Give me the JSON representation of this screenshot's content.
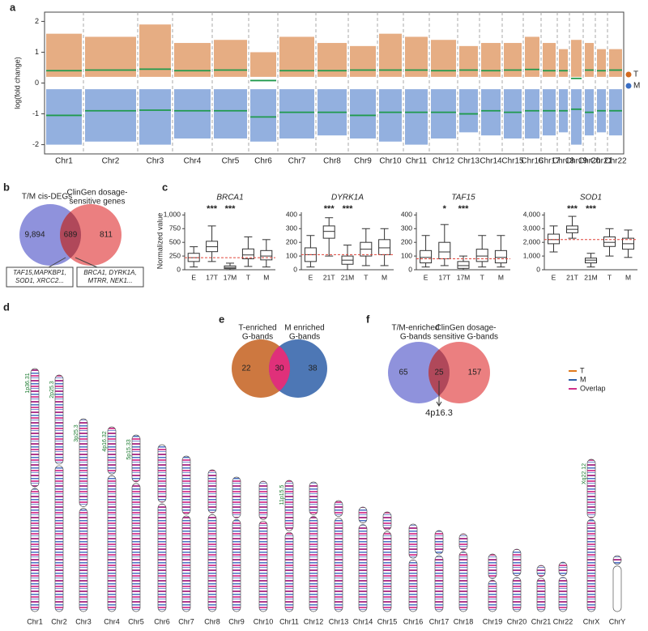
{
  "panel_labels": [
    "a",
    "b",
    "c",
    "d",
    "e",
    "f"
  ],
  "chart_data": [
    {
      "type": "strip",
      "ylabel": "log(fold change)",
      "categories": [
        "Chr1",
        "Chr2",
        "Chr3",
        "Chr4",
        "Chr5",
        "Chr6",
        "Chr7",
        "Chr8",
        "Chr9",
        "Chr10",
        "Chr11",
        "Chr12",
        "Chr13",
        "Chr14",
        "Chr15",
        "Chr16",
        "Chr17",
        "Chr18",
        "Chr19",
        "Chr20",
        "Chr21",
        "Chr22"
      ],
      "ylim": [
        -2.3,
        2.3
      ],
      "yticks": [
        -2,
        -1,
        0,
        1,
        2
      ],
      "legend": "right",
      "median_color": "#1f9a4c",
      "series": [
        {
          "name": "T",
          "color": "#d2691e",
          "values": [
            0.4,
            0.42,
            0.45,
            0.4,
            0.42,
            0.08,
            0.4,
            0.4,
            0.42,
            0.42,
            0.42,
            0.4,
            0.42,
            0.4,
            0.42,
            0.44,
            0.4,
            0.4,
            0.15,
            0.42,
            0.4,
            0.42
          ],
          "ranges": [
            [
              0.2,
              1.6
            ],
            [
              0.2,
              1.5
            ],
            [
              0.2,
              1.9
            ],
            [
              0.2,
              1.3
            ],
            [
              0.2,
              1.4
            ],
            [
              0.2,
              1.0
            ],
            [
              0.2,
              1.5
            ],
            [
              0.2,
              1.3
            ],
            [
              0.2,
              1.2
            ],
            [
              0.2,
              1.6
            ],
            [
              0.2,
              1.5
            ],
            [
              0.2,
              1.4
            ],
            [
              0.2,
              1.2
            ],
            [
              0.2,
              1.3
            ],
            [
              0.2,
              1.3
            ],
            [
              0.2,
              1.5
            ],
            [
              0.2,
              1.3
            ],
            [
              0.2,
              1.1
            ],
            [
              0.2,
              1.4
            ],
            [
              0.2,
              1.3
            ],
            [
              0.2,
              1.1
            ],
            [
              0.2,
              1.1
            ]
          ]
        },
        {
          "name": "M",
          "color": "#3a6fc4",
          "values": [
            -1.05,
            -0.9,
            -0.88,
            -0.9,
            -0.9,
            -1.1,
            -0.95,
            -0.95,
            -1.05,
            -0.95,
            -0.95,
            -0.95,
            -1.0,
            -0.9,
            -0.95,
            -0.9,
            -0.9,
            -0.9,
            -0.85,
            -0.95,
            -0.9,
            -0.9
          ],
          "ranges": [
            [
              -2.0,
              -0.2
            ],
            [
              -1.9,
              -0.2
            ],
            [
              -2.0,
              -0.2
            ],
            [
              -1.8,
              -0.2
            ],
            [
              -1.8,
              -0.2
            ],
            [
              -1.9,
              -0.2
            ],
            [
              -1.8,
              -0.2
            ],
            [
              -1.7,
              -0.2
            ],
            [
              -1.8,
              -0.2
            ],
            [
              -1.9,
              -0.2
            ],
            [
              -2.0,
              -0.2
            ],
            [
              -1.8,
              -0.2
            ],
            [
              -1.6,
              -0.2
            ],
            [
              -1.7,
              -0.2
            ],
            [
              -1.8,
              -0.2
            ],
            [
              -1.8,
              -0.2
            ],
            [
              -1.7,
              -0.2
            ],
            [
              -1.6,
              -0.2
            ],
            [
              -2.0,
              -0.2
            ],
            [
              -1.7,
              -0.2
            ],
            [
              -1.6,
              -0.2
            ],
            [
              -1.7,
              -0.2
            ]
          ]
        }
      ]
    },
    {
      "type": "box",
      "title": "BRCA1",
      "ylabel": "Normalized value",
      "categories": [
        "E",
        "17T",
        "17M",
        "T",
        "M"
      ],
      "annotations": [
        null,
        "***",
        "***",
        null,
        null
      ],
      "ylim": [
        0,
        1050
      ],
      "yticks": [
        0,
        250,
        500,
        750,
        {
          "value": 1000,
          "label": "1,000"
        }
      ],
      "ref_line": 220,
      "ref_color": "#e0443a",
      "boxes": [
        {
          "whislo": 50,
          "q1": 150,
          "med": 220,
          "q3": 300,
          "whishi": 420
        },
        {
          "whislo": 150,
          "q1": 330,
          "med": 420,
          "q3": 520,
          "whishi": 800
        },
        {
          "whislo": 0,
          "q1": 20,
          "med": 40,
          "q3": 70,
          "whishi": 120
        },
        {
          "whislo": 60,
          "q1": 200,
          "med": 270,
          "q3": 380,
          "whishi": 600
        },
        {
          "whislo": 50,
          "q1": 180,
          "med": 250,
          "q3": 350,
          "whishi": 550
        }
      ]
    },
    {
      "type": "box",
      "title": "DYRK1A",
      "categories": [
        "E",
        "21T",
        "21M",
        "T",
        "M"
      ],
      "annotations": [
        null,
        "***",
        "***",
        null,
        null
      ],
      "ylim": [
        0,
        420
      ],
      "yticks": [
        0,
        100,
        200,
        300,
        400
      ],
      "ref_line": 110,
      "ref_color": "#e0443a",
      "boxes": [
        {
          "whislo": 20,
          "q1": 60,
          "med": 110,
          "q3": 160,
          "whishi": 250
        },
        {
          "whislo": 100,
          "q1": 230,
          "med": 280,
          "q3": 320,
          "whishi": 380
        },
        {
          "whislo": 0,
          "q1": 40,
          "med": 70,
          "q3": 100,
          "whishi": 180
        },
        {
          "whislo": 30,
          "q1": 100,
          "med": 150,
          "q3": 200,
          "whishi": 300
        },
        {
          "whislo": 30,
          "q1": 110,
          "med": 160,
          "q3": 220,
          "whishi": 300
        }
      ]
    },
    {
      "type": "box",
      "title": "TAF15",
      "categories": [
        "E",
        "17T",
        "17M",
        "T",
        "M"
      ],
      "annotations": [
        null,
        "*",
        "***",
        null,
        null
      ],
      "ylim": [
        0,
        420
      ],
      "yticks": [
        0,
        100,
        200,
        300,
        400
      ],
      "ref_line": 80,
      "ref_color": "#e0443a",
      "boxes": [
        {
          "whislo": 20,
          "q1": 50,
          "med": 90,
          "q3": 140,
          "whishi": 250
        },
        {
          "whislo": 30,
          "q1": 80,
          "med": 130,
          "q3": 200,
          "whishi": 330
        },
        {
          "whislo": 0,
          "q1": 10,
          "med": 30,
          "q3": 60,
          "whishi": 100
        },
        {
          "whislo": 20,
          "q1": 60,
          "med": 100,
          "q3": 150,
          "whishi": 250
        },
        {
          "whislo": 20,
          "q1": 50,
          "med": 90,
          "q3": 140,
          "whishi": 250
        }
      ]
    },
    {
      "type": "box",
      "title": "SOD1",
      "categories": [
        "E",
        "21T",
        "21M",
        "T",
        "M"
      ],
      "annotations": [
        null,
        "***",
        "***",
        null,
        null
      ],
      "ylim": [
        0,
        4200
      ],
      "yticks": [
        0,
        {
          "value": 1000,
          "label": "1,000"
        },
        {
          "value": 2000,
          "label": "2,000"
        },
        {
          "value": 3000,
          "label": "3,000"
        },
        {
          "value": 4000,
          "label": "4,000"
        }
      ],
      "ref_line": 2200,
      "ref_color": "#e0443a",
      "boxes": [
        {
          "whislo": 1300,
          "q1": 1900,
          "med": 2200,
          "q3": 2600,
          "whishi": 3200
        },
        {
          "whislo": 2300,
          "q1": 2700,
          "med": 2950,
          "q3": 3200,
          "whishi": 3900
        },
        {
          "whislo": 200,
          "q1": 500,
          "med": 700,
          "q3": 850,
          "whishi": 1200
        },
        {
          "whislo": 1000,
          "q1": 1700,
          "med": 2000,
          "q3": 2400,
          "whishi": 3000
        },
        {
          "whislo": 900,
          "q1": 1500,
          "med": 1900,
          "q3": 2300,
          "whishi": 2900
        }
      ]
    }
  ],
  "venns": [
    {
      "left_title": [
        "T/M cis-DEGs"
      ],
      "right_title": [
        "ClinGen dosage-",
        "sensitive genes"
      ],
      "left": "9,894",
      "both": "689",
      "right": "811",
      "left_color": "#7b7fd6",
      "right_color": "#e8686a",
      "both_color": "#b0485a",
      "left_note": [
        "TAF15,MAPKBP1,",
        "SOD1, XRCC2..."
      ],
      "right_note": [
        "BRCA1, DYRK1A,",
        "MTRR, NEK1..."
      ]
    },
    {
      "left_title": [
        "T-enriched",
        "G-bands"
      ],
      "right_title": [
        "M enriched",
        "G-bands"
      ],
      "left": "22",
      "both": "30",
      "right": "38",
      "left_color": "#c4601e",
      "right_color": "#2e5fa8",
      "both_color": "#e0307a"
    },
    {
      "left_title": [
        "T/M-enriched",
        "G-bands"
      ],
      "right_title": [
        "ClinGen dosage-",
        "sensitive G-bands"
      ],
      "left": "65",
      "both": "25",
      "right": "157",
      "left_color": "#7b7fd6",
      "right_color": "#e8686a",
      "both_color": "#b0485a",
      "callout": "4p16.3"
    }
  ],
  "ideogram": {
    "chromosomes": [
      "Chr1",
      "Chr2",
      "Chr3",
      "Chr4",
      "Chr5",
      "Chr6",
      "Chr7",
      "Chr8",
      "Chr9",
      "Chr10",
      "Chr11",
      "Chr12",
      "Chr13",
      "Chr14",
      "Chr15",
      "Chr16",
      "Chr17",
      "Chr18",
      "Chr19",
      "Chr20",
      "Chr21",
      "Chr22",
      "ChrX",
      "ChrY"
    ],
    "legend": [
      {
        "name": "T",
        "color": "#e07a1e"
      },
      {
        "name": "M",
        "color": "#2e5fa8"
      },
      {
        "name": "Overlap",
        "color": "#d0308a"
      }
    ],
    "band_labels": [
      {
        "chrom": 0,
        "text": "1p36.31"
      },
      {
        "chrom": 1,
        "text": "2p25.3"
      },
      {
        "chrom": 2,
        "text": "3p25.3"
      },
      {
        "chrom": 3,
        "text": "4p16.32"
      },
      {
        "chrom": 4,
        "text": "5p15.33"
      },
      {
        "chrom": 10,
        "text": "11p15.5"
      },
      {
        "chrom": 22,
        "text": "Xq22.12"
      }
    ]
  }
}
